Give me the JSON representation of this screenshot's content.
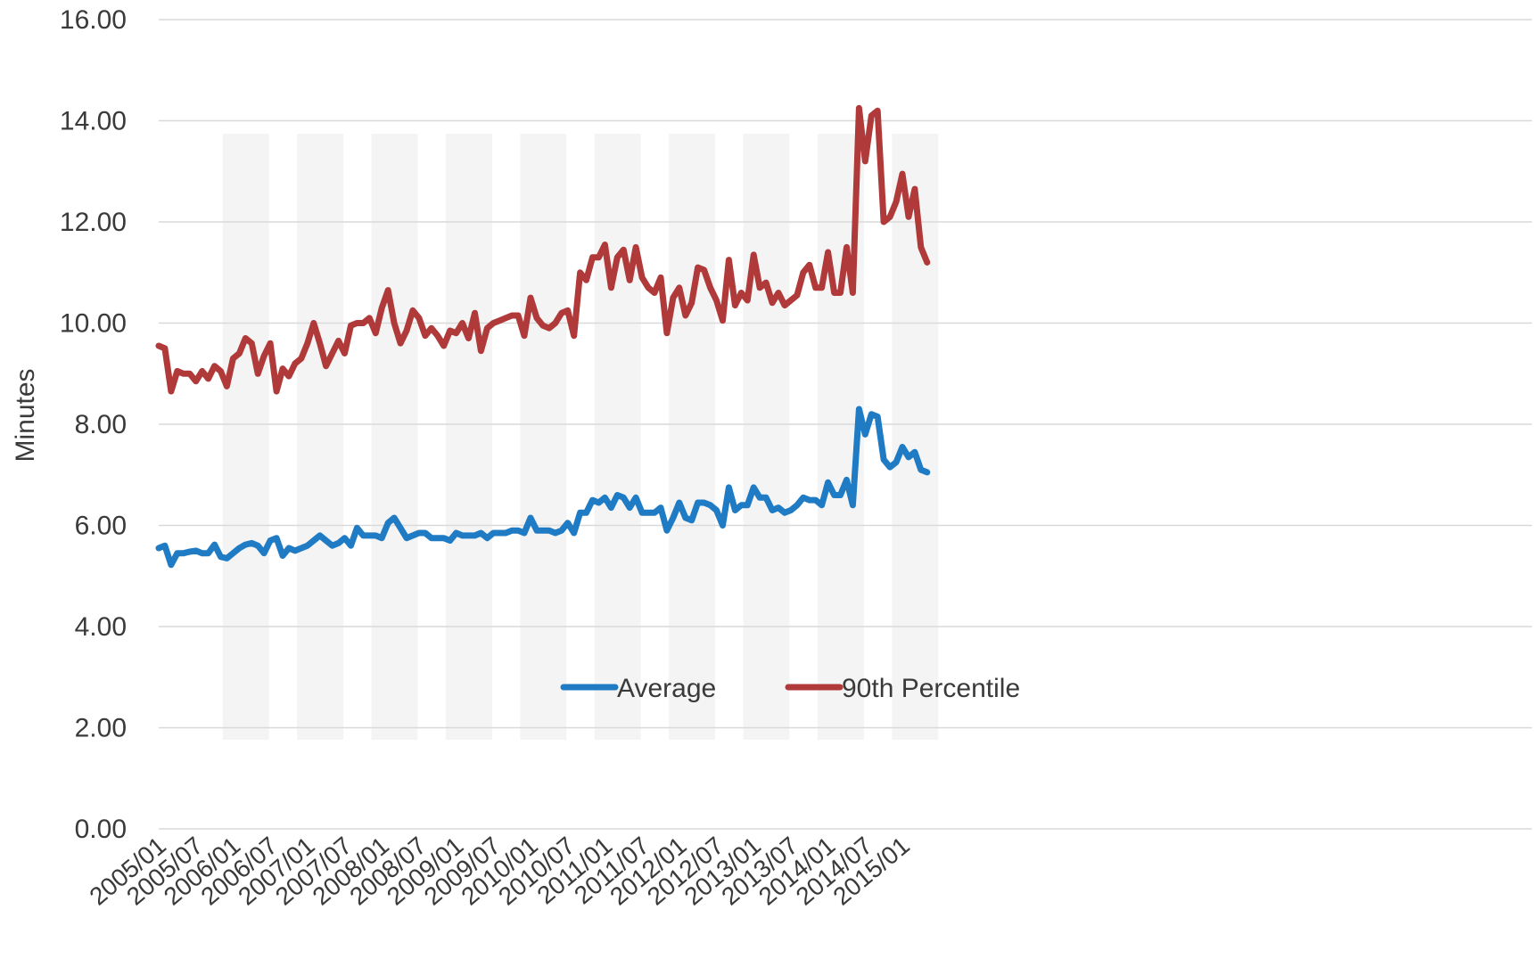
{
  "chart_data": {
    "type": "line",
    "title": "",
    "xlabel": "",
    "ylabel": "Minutes",
    "ylim": [
      0,
      16
    ],
    "yticks": [
      "0.00",
      "2.00",
      "4.00",
      "6.00",
      "8.00",
      "10.00",
      "12.00",
      "14.00",
      "16.00"
    ],
    "grid": true,
    "legend_position": "center",
    "x_start": "2005/01",
    "x_tick_labels": [
      "2005/01",
      "2005/07",
      "2006/01",
      "2006/07",
      "2007/01",
      "2007/07",
      "2008/01",
      "2008/07",
      "2009/01",
      "2009/07",
      "2010/01",
      "2010/07",
      "2011/01",
      "2011/07",
      "2012/01",
      "2012/07",
      "2013/01",
      "2013/07",
      "2014/01",
      "2014/07",
      "2015/01"
    ],
    "series": [
      {
        "name": "Average",
        "color": "#1f7bc4",
        "values": [
          5.55,
          5.6,
          5.22,
          5.45,
          5.45,
          5.48,
          5.5,
          5.45,
          5.45,
          5.62,
          5.38,
          5.35,
          5.45,
          5.55,
          5.62,
          5.65,
          5.6,
          5.45,
          5.7,
          5.75,
          5.4,
          5.55,
          5.5,
          5.55,
          5.6,
          5.7,
          5.8,
          5.7,
          5.6,
          5.65,
          5.75,
          5.6,
          5.95,
          5.8,
          5.8,
          5.8,
          5.75,
          6.05,
          6.15,
          5.95,
          5.75,
          5.8,
          5.85,
          5.85,
          5.75,
          5.75,
          5.75,
          5.7,
          5.85,
          5.8,
          5.8,
          5.8,
          5.85,
          5.75,
          5.85,
          5.85,
          5.85,
          5.9,
          5.9,
          5.85,
          6.15,
          5.9,
          5.9,
          5.9,
          5.85,
          5.9,
          6.05,
          5.85,
          6.25,
          6.25,
          6.5,
          6.45,
          6.55,
          6.35,
          6.6,
          6.55,
          6.35,
          6.55,
          6.25,
          6.25,
          6.25,
          6.35,
          5.9,
          6.15,
          6.45,
          6.15,
          6.1,
          6.45,
          6.45,
          6.4,
          6.3,
          6.0,
          6.75,
          6.3,
          6.4,
          6.4,
          6.75,
          6.55,
          6.55,
          6.3,
          6.35,
          6.25,
          6.3,
          6.4,
          6.55,
          6.5,
          6.5,
          6.4,
          6.85,
          6.6,
          6.6,
          6.9,
          6.4,
          8.3,
          7.8,
          8.2,
          8.15,
          7.3,
          7.15,
          7.25,
          7.55,
          7.35,
          7.45,
          7.1,
          7.05
        ]
      },
      {
        "name": "90th Percentile",
        "color": "#b03a3a",
        "values": [
          9.55,
          9.5,
          8.65,
          9.05,
          9.0,
          9.0,
          8.85,
          9.05,
          8.9,
          9.15,
          9.05,
          8.75,
          9.3,
          9.4,
          9.7,
          9.6,
          9.0,
          9.35,
          9.6,
          8.65,
          9.1,
          8.95,
          9.2,
          9.3,
          9.6,
          10.0,
          9.6,
          9.15,
          9.4,
          9.65,
          9.4,
          9.95,
          10.0,
          10.0,
          10.1,
          9.8,
          10.3,
          10.65,
          10.0,
          9.6,
          9.85,
          10.25,
          10.1,
          9.75,
          9.9,
          9.75,
          9.55,
          9.85,
          9.8,
          10.0,
          9.7,
          10.2,
          9.45,
          9.9,
          10.0,
          10.05,
          10.1,
          10.15,
          10.15,
          9.75,
          10.5,
          10.1,
          9.95,
          9.9,
          10.0,
          10.2,
          10.25,
          9.75,
          11.0,
          10.85,
          11.3,
          11.3,
          11.55,
          10.7,
          11.3,
          11.45,
          10.85,
          11.5,
          10.9,
          10.7,
          10.6,
          10.9,
          9.8,
          10.5,
          10.7,
          10.15,
          10.4,
          11.1,
          11.05,
          10.7,
          10.45,
          10.05,
          11.25,
          10.35,
          10.6,
          10.45,
          11.35,
          10.7,
          10.8,
          10.4,
          10.6,
          10.35,
          10.45,
          10.55,
          11.0,
          11.15,
          10.7,
          10.7,
          11.4,
          10.6,
          10.6,
          11.5,
          10.6,
          14.25,
          13.2,
          14.1,
          14.2,
          12.0,
          12.1,
          12.4,
          12.95,
          12.1,
          12.65,
          11.5,
          11.2
        ]
      }
    ]
  }
}
